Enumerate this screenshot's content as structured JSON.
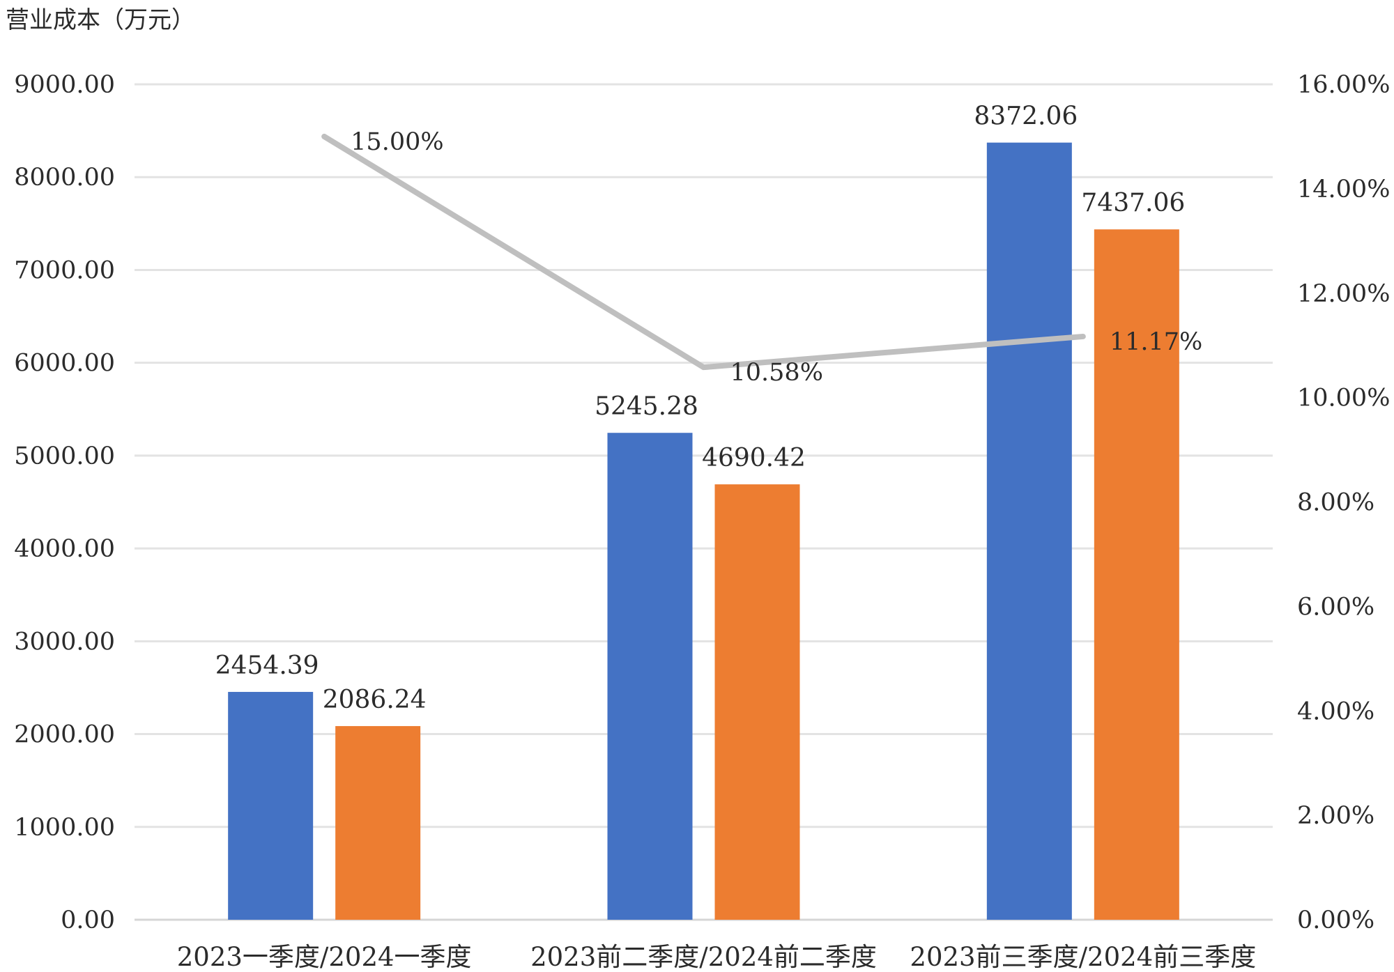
{
  "chart_data": {
    "type": "bar",
    "ylabel": "营业成本（万元）",
    "categories": [
      "2023一季度/2024一季度",
      "2023前二季度/2024前二季度",
      "2023前三季度/2024前三季度"
    ],
    "series": [
      {
        "type": "bar",
        "axis": "left",
        "color": "#4472C4",
        "values": [
          2454.39,
          5245.28,
          8372.06
        ],
        "labels": [
          "2454.39",
          "5245.28",
          "8372.06"
        ]
      },
      {
        "type": "bar",
        "axis": "left",
        "color": "#ED7D31",
        "values": [
          2086.24,
          4690.42,
          7437.06
        ],
        "labels": [
          "2086.24",
          "4690.42",
          "7437.06"
        ]
      },
      {
        "type": "line",
        "axis": "right",
        "color": "#BFBFBF",
        "values": [
          15.0,
          10.58,
          11.17
        ],
        "labels": [
          "15.00%",
          "10.58%",
          "11.17%"
        ]
      }
    ],
    "ylim": [
      0,
      9000
    ],
    "yticks": [
      "0.00",
      "1000.00",
      "2000.00",
      "3000.00",
      "4000.00",
      "5000.00",
      "6000.00",
      "7000.00",
      "8000.00",
      "9000.00"
    ],
    "y2lim": [
      0,
      16
    ],
    "y2ticks": [
      "0.00%",
      "2.00%",
      "4.00%",
      "6.00%",
      "8.00%",
      "10.00%",
      "12.00%",
      "14.00%",
      "16.00%"
    ],
    "grid": true,
    "legend": "none"
  }
}
